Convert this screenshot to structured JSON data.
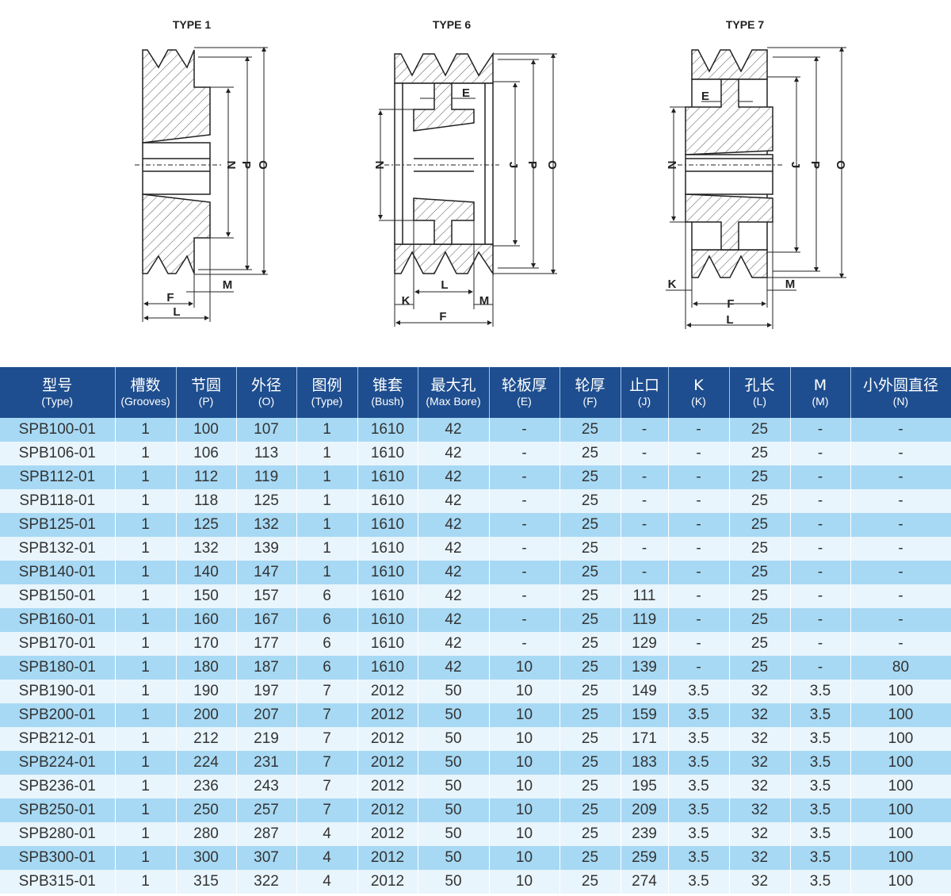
{
  "drawings": {
    "type1": {
      "title": "TYPE 1",
      "labels": {
        "N": "N",
        "P": "P",
        "O": "O",
        "M": "M",
        "F": "F",
        "L": "L"
      }
    },
    "type6": {
      "title": "TYPE 6",
      "labels": {
        "N": "N",
        "E": "E",
        "J": "J",
        "P": "P",
        "O": "O",
        "K": "K",
        "L": "L",
        "M": "M",
        "F": "F"
      }
    },
    "type7": {
      "title": "TYPE 7",
      "labels": {
        "N": "N",
        "E": "E",
        "J": "J",
        "P": "P",
        "O": "O",
        "K": "K",
        "M": "M",
        "F": "F",
        "L": "L"
      }
    }
  },
  "colors": {
    "header_bg": "#1e4e8f",
    "row_odd": "#a7d9f4",
    "row_even": "#e9f5fc"
  },
  "table": {
    "headers": [
      {
        "cn": "型号",
        "en": "(Type)"
      },
      {
        "cn": "槽数",
        "en": "(Grooves)"
      },
      {
        "cn": "节圆",
        "en": "(P)"
      },
      {
        "cn": "外径",
        "en": "(O)"
      },
      {
        "cn": "图例",
        "en": "(Type)"
      },
      {
        "cn": "锥套",
        "en": "(Bush)"
      },
      {
        "cn": "最大孔",
        "en": "(Max Bore)"
      },
      {
        "cn": "轮板厚",
        "en": "(E)"
      },
      {
        "cn": "轮厚",
        "en": "(F)"
      },
      {
        "cn": "止口",
        "en": "(J)"
      },
      {
        "cn": "K",
        "en": "(K)"
      },
      {
        "cn": "孔长",
        "en": "(L)"
      },
      {
        "cn": "M",
        "en": "(M)"
      },
      {
        "cn": "小外圆直径",
        "en": "(N)"
      }
    ],
    "rows": [
      [
        "SPB100-01",
        "1",
        "100",
        "107",
        "1",
        "1610",
        "42",
        "-",
        "25",
        "-",
        "-",
        "25",
        "-",
        "-"
      ],
      [
        "SPB106-01",
        "1",
        "106",
        "113",
        "1",
        "1610",
        "42",
        "-",
        "25",
        "-",
        "-",
        "25",
        "-",
        "-"
      ],
      [
        "SPB112-01",
        "1",
        "112",
        "119",
        "1",
        "1610",
        "42",
        "-",
        "25",
        "-",
        "-",
        "25",
        "-",
        "-"
      ],
      [
        "SPB118-01",
        "1",
        "118",
        "125",
        "1",
        "1610",
        "42",
        "-",
        "25",
        "-",
        "-",
        "25",
        "-",
        "-"
      ],
      [
        "SPB125-01",
        "1",
        "125",
        "132",
        "1",
        "1610",
        "42",
        "-",
        "25",
        "-",
        "-",
        "25",
        "-",
        "-"
      ],
      [
        "SPB132-01",
        "1",
        "132",
        "139",
        "1",
        "1610",
        "42",
        "-",
        "25",
        "-",
        "-",
        "25",
        "-",
        "-"
      ],
      [
        "SPB140-01",
        "1",
        "140",
        "147",
        "1",
        "1610",
        "42",
        "-",
        "25",
        "-",
        "-",
        "25",
        "-",
        "-"
      ],
      [
        "SPB150-01",
        "1",
        "150",
        "157",
        "6",
        "1610",
        "42",
        "-",
        "25",
        "111",
        "-",
        "25",
        "-",
        "-"
      ],
      [
        "SPB160-01",
        "1",
        "160",
        "167",
        "6",
        "1610",
        "42",
        "-",
        "25",
        "119",
        "-",
        "25",
        "-",
        "-"
      ],
      [
        "SPB170-01",
        "1",
        "170",
        "177",
        "6",
        "1610",
        "42",
        "-",
        "25",
        "129",
        "-",
        "25",
        "-",
        "-"
      ],
      [
        "SPB180-01",
        "1",
        "180",
        "187",
        "6",
        "1610",
        "42",
        "10",
        "25",
        "139",
        "-",
        "25",
        "-",
        "80"
      ],
      [
        "SPB190-01",
        "1",
        "190",
        "197",
        "7",
        "2012",
        "50",
        "10",
        "25",
        "149",
        "3.5",
        "32",
        "3.5",
        "100"
      ],
      [
        "SPB200-01",
        "1",
        "200",
        "207",
        "7",
        "2012",
        "50",
        "10",
        "25",
        "159",
        "3.5",
        "32",
        "3.5",
        "100"
      ],
      [
        "SPB212-01",
        "1",
        "212",
        "219",
        "7",
        "2012",
        "50",
        "10",
        "25",
        "171",
        "3.5",
        "32",
        "3.5",
        "100"
      ],
      [
        "SPB224-01",
        "1",
        "224",
        "231",
        "7",
        "2012",
        "50",
        "10",
        "25",
        "183",
        "3.5",
        "32",
        "3.5",
        "100"
      ],
      [
        "SPB236-01",
        "1",
        "236",
        "243",
        "7",
        "2012",
        "50",
        "10",
        "25",
        "195",
        "3.5",
        "32",
        "3.5",
        "100"
      ],
      [
        "SPB250-01",
        "1",
        "250",
        "257",
        "7",
        "2012",
        "50",
        "10",
        "25",
        "209",
        "3.5",
        "32",
        "3.5",
        "100"
      ],
      [
        "SPB280-01",
        "1",
        "280",
        "287",
        "4",
        "2012",
        "50",
        "10",
        "25",
        "239",
        "3.5",
        "32",
        "3.5",
        "100"
      ],
      [
        "SPB300-01",
        "1",
        "300",
        "307",
        "4",
        "2012",
        "50",
        "10",
        "25",
        "259",
        "3.5",
        "32",
        "3.5",
        "100"
      ],
      [
        "SPB315-01",
        "1",
        "315",
        "322",
        "4",
        "2012",
        "50",
        "10",
        "25",
        "274",
        "3.5",
        "32",
        "3.5",
        "100"
      ]
    ]
  }
}
